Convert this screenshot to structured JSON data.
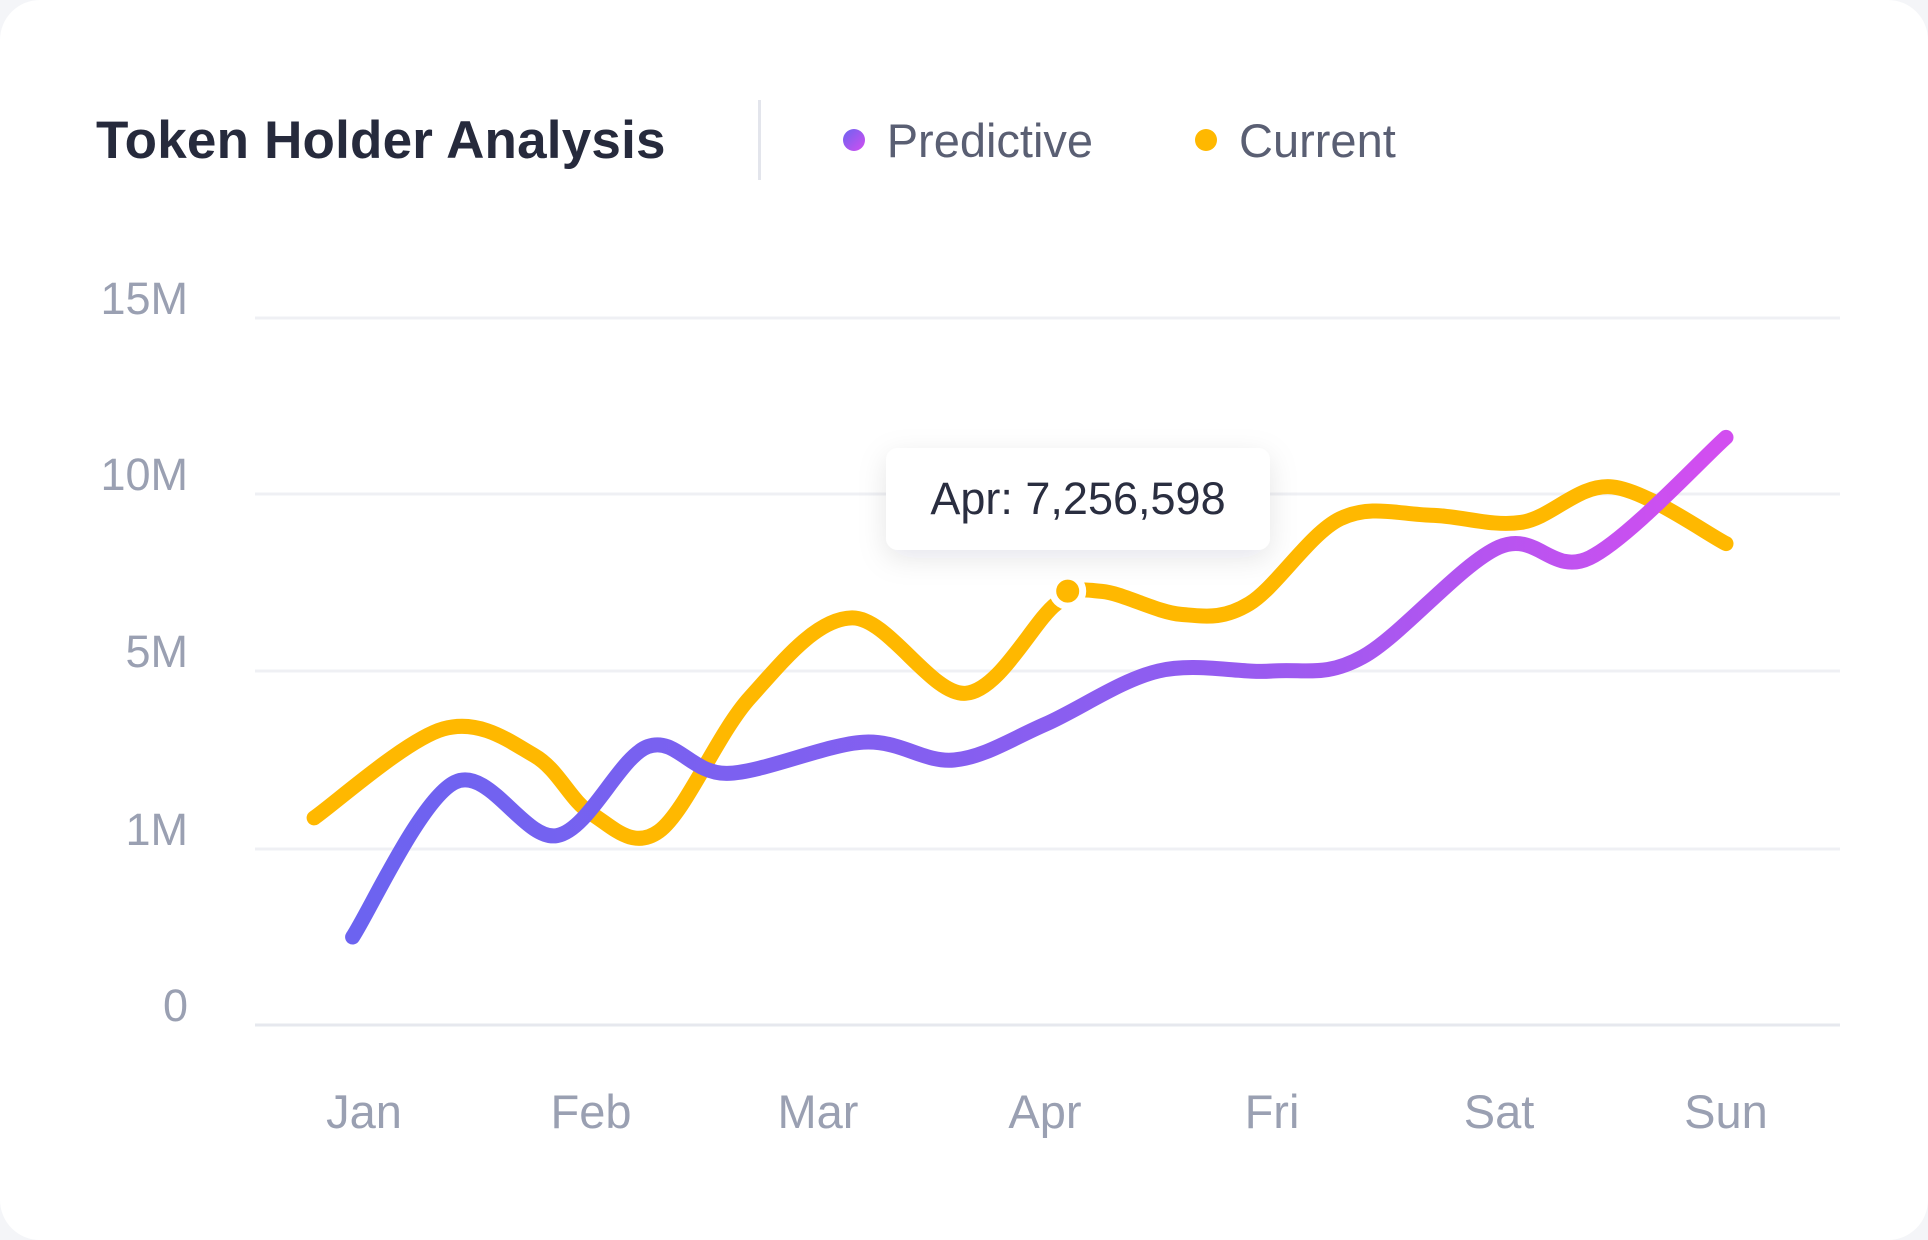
{
  "chart_data": {
    "type": "line",
    "title": "Token Holder Analysis",
    "categories": [
      "Jan",
      "Feb",
      "Mar",
      "Apr",
      "Fri",
      "Sat",
      "Sun"
    ],
    "y_ticks": [
      "15M",
      "10M",
      "5M",
      "1M",
      "0"
    ],
    "series": [
      {
        "name": "Predictive",
        "color": "#6c63f0",
        "color_end": "#d24ef0",
        "x": [
          -0.05,
          0.4,
          0.85,
          1.25,
          1.6,
          2.2,
          2.6,
          3.0,
          3.5,
          4.0,
          4.4,
          5.0,
          5.4,
          6.0
        ],
        "y": [
          0.5,
          2.5,
          1.3,
          3.3,
          2.7,
          3.4,
          3.0,
          3.8,
          5.0,
          5.0,
          5.4,
          8.5,
          8.2,
          11.6
        ]
      },
      {
        "name": "Current",
        "color": "#ffb800",
        "x": [
          -0.22,
          0.35,
          0.75,
          1.0,
          1.3,
          1.7,
          2.15,
          2.65,
          3.05,
          3.25,
          3.6,
          3.9,
          4.3,
          4.7,
          5.1,
          5.5,
          6.0
        ],
        "y": [
          1.7,
          3.7,
          3.1,
          1.8,
          1.4,
          4.4,
          6.5,
          4.5,
          6.9,
          7.25,
          6.6,
          6.9,
          9.3,
          9.4,
          9.2,
          10.2,
          8.6
        ]
      }
    ],
    "tooltip": {
      "label": "Apr: 7,256,598",
      "series": "Current",
      "x": 3.1,
      "y": 7.256598
    }
  }
}
